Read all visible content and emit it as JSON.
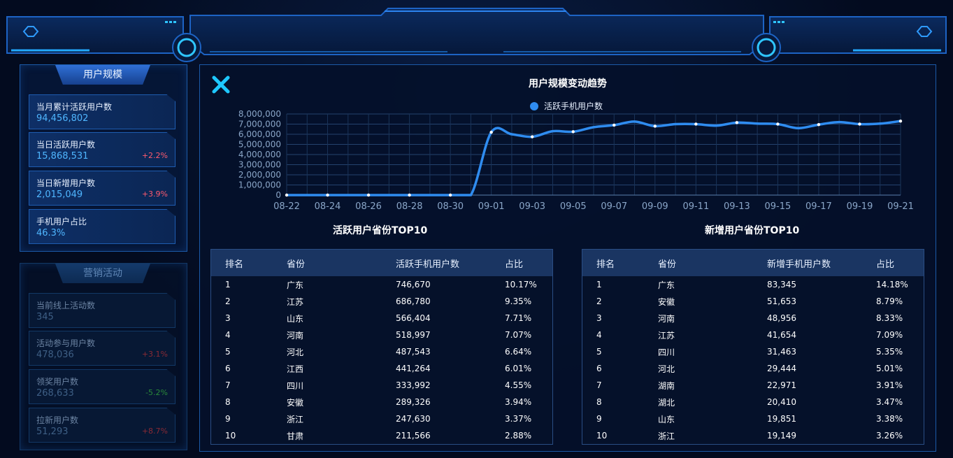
{
  "left": {
    "user_scale": {
      "title": "用户规模",
      "stats": [
        {
          "label": "当月累计活跃用户数",
          "value": "94,456,802",
          "change": ""
        },
        {
          "label": "当日活跃用户数",
          "value": "15,868,531",
          "change": "+2.2%"
        },
        {
          "label": "当日新增用户数",
          "value": "2,015,049",
          "change": "+3.9%"
        },
        {
          "label": "手机用户占比",
          "value": "46.3%",
          "change": ""
        }
      ]
    },
    "marketing": {
      "title": "营销活动",
      "stats": [
        {
          "label": "当前线上活动数",
          "value": "345",
          "change": ""
        },
        {
          "label": "活动参与用户数",
          "value": "478,036",
          "change": "+3.1%"
        },
        {
          "label": "领奖用户数",
          "value": "268,633",
          "change": "-5.2%"
        },
        {
          "label": "拉新用户数",
          "value": "51,293",
          "change": "+8.7%"
        }
      ]
    }
  },
  "modal": {
    "chart_title": "用户规模变动趋势",
    "legend": "活跃手机用户数",
    "table1_title": "活跃用户省份TOP10",
    "table2_title": "新增用户省份TOP10",
    "table1_headers": [
      "排名",
      "省份",
      "活跃手机用户数",
      "占比"
    ],
    "table2_headers": [
      "排名",
      "省份",
      "新增手机用户数",
      "占比"
    ],
    "table1_rows": [
      [
        "1",
        "广东",
        "746,670",
        "10.17%"
      ],
      [
        "2",
        "江苏",
        "686,780",
        "9.35%"
      ],
      [
        "3",
        "山东",
        "566,404",
        "7.71%"
      ],
      [
        "4",
        "河南",
        "518,997",
        "7.07%"
      ],
      [
        "5",
        "河北",
        "487,543",
        "6.64%"
      ],
      [
        "6",
        "江西",
        "441,264",
        "6.01%"
      ],
      [
        "7",
        "四川",
        "333,992",
        "4.55%"
      ],
      [
        "8",
        "安徽",
        "289,326",
        "3.94%"
      ],
      [
        "9",
        "浙江",
        "247,630",
        "3.37%"
      ],
      [
        "10",
        "甘肃",
        "211,566",
        "2.88%"
      ]
    ],
    "table2_rows": [
      [
        "1",
        "广东",
        "83,345",
        "14.18%"
      ],
      [
        "2",
        "安徽",
        "51,653",
        "8.79%"
      ],
      [
        "3",
        "河南",
        "48,956",
        "8.33%"
      ],
      [
        "4",
        "江苏",
        "41,654",
        "7.09%"
      ],
      [
        "5",
        "四川",
        "31,463",
        "5.35%"
      ],
      [
        "6",
        "河北",
        "29,444",
        "5.01%"
      ],
      [
        "7",
        "湖南",
        "22,971",
        "3.91%"
      ],
      [
        "8",
        "湖北",
        "20,410",
        "3.47%"
      ],
      [
        "9",
        "山东",
        "19,851",
        "3.38%"
      ],
      [
        "10",
        "浙江",
        "19,149",
        "3.26%"
      ]
    ]
  },
  "colors": {
    "accent": "#2f8cf0",
    "positive": "#ff5a6e",
    "negative": "#2a8a3a"
  },
  "chart_data": {
    "type": "line",
    "title": "用户规模变动趋势",
    "x": [
      "08-22",
      "08-23",
      "08-24",
      "08-25",
      "08-26",
      "08-27",
      "08-28",
      "08-29",
      "08-30",
      "08-31",
      "09-01",
      "09-02",
      "09-03",
      "09-04",
      "09-05",
      "09-06",
      "09-07",
      "09-08",
      "09-09",
      "09-10",
      "09-11",
      "09-12",
      "09-13",
      "09-14",
      "09-15",
      "09-16",
      "09-17",
      "09-18",
      "09-19",
      "09-20",
      "09-21"
    ],
    "xticks": [
      "08-22",
      "08-24",
      "08-26",
      "08-28",
      "08-30",
      "09-01",
      "09-03",
      "09-05",
      "09-07",
      "09-09",
      "09-11",
      "09-13",
      "09-15",
      "09-17",
      "09-19",
      "09-21"
    ],
    "series": [
      {
        "name": "活跃手机用户数",
        "values": [
          0,
          0,
          0,
          0,
          0,
          0,
          0,
          0,
          0,
          0,
          6200000,
          6000000,
          5750000,
          6300000,
          6250000,
          6700000,
          6900000,
          7250000,
          6800000,
          7000000,
          7000000,
          6850000,
          7150000,
          7050000,
          7000000,
          6600000,
          6950000,
          7200000,
          7000000,
          7050000,
          7300000
        ]
      }
    ],
    "ylim": [
      0,
      8000000
    ],
    "yticks": [
      "0",
      "1,000,000",
      "2,000,000",
      "3,000,000",
      "4,000,000",
      "5,000,000",
      "6,000,000",
      "7,000,000",
      "8,000,000"
    ],
    "grid": true,
    "legend": "top-center"
  }
}
